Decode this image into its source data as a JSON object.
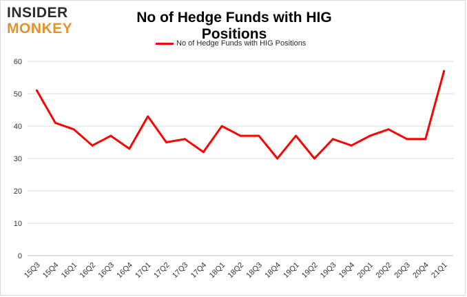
{
  "logo": {
    "line1": "INSIDER",
    "line2": "MONKEY"
  },
  "chart_data": {
    "type": "line",
    "title": "No of Hedge Funds with HIG Positions",
    "categories": [
      "15Q3",
      "15Q4",
      "16Q1",
      "16Q2",
      "16Q3",
      "16Q4",
      "17Q1",
      "17Q2",
      "17Q3",
      "17Q4",
      "18Q1",
      "18Q2",
      "18Q3",
      "18Q4",
      "19Q1",
      "19Q2",
      "19Q3",
      "19Q4",
      "20Q1",
      "20Q2",
      "20Q3",
      "20Q4",
      "21Q1"
    ],
    "series": [
      {
        "name": "No of Hedge Funds with HIG Positions",
        "values": [
          51,
          41,
          39,
          34,
          37,
          33,
          43,
          35,
          36,
          32,
          40,
          37,
          37,
          30,
          37,
          30,
          36,
          34,
          37,
          39,
          36,
          36,
          57
        ],
        "color": "#ff0000"
      }
    ],
    "ylim": [
      0,
      60
    ],
    "yticks": [
      0,
      10,
      20,
      30,
      40,
      50,
      60
    ],
    "grid": true,
    "legend": "top-center",
    "xlabel": "",
    "ylabel": ""
  }
}
